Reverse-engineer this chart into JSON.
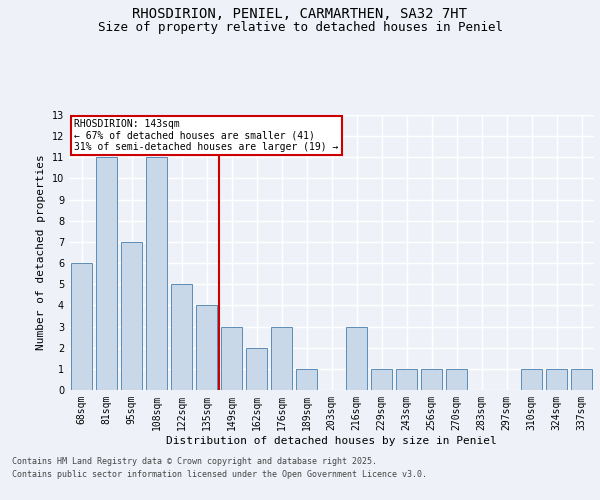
{
  "title_line1": "RHOSDIRION, PENIEL, CARMARTHEN, SA32 7HT",
  "title_line2": "Size of property relative to detached houses in Peniel",
  "xlabel": "Distribution of detached houses by size in Peniel",
  "ylabel": "Number of detached properties",
  "categories": [
    "68sqm",
    "81sqm",
    "95sqm",
    "108sqm",
    "122sqm",
    "135sqm",
    "149sqm",
    "162sqm",
    "176sqm",
    "189sqm",
    "203sqm",
    "216sqm",
    "229sqm",
    "243sqm",
    "256sqm",
    "270sqm",
    "283sqm",
    "297sqm",
    "310sqm",
    "324sqm",
    "337sqm"
  ],
  "values": [
    6,
    11,
    7,
    11,
    5,
    4,
    3,
    2,
    3,
    1,
    0,
    3,
    1,
    1,
    1,
    1,
    0,
    0,
    1,
    1,
    1
  ],
  "bar_color": "#c8d8e8",
  "bar_edgecolor": "#5b8db8",
  "ylim": [
    0,
    13
  ],
  "yticks": [
    0,
    1,
    2,
    3,
    4,
    5,
    6,
    7,
    8,
    9,
    10,
    11,
    12,
    13
  ],
  "vline_x": 5.5,
  "vline_color": "#cc0000",
  "annotation_text": "RHOSDIRION: 143sqm\n← 67% of detached houses are smaller (41)\n31% of semi-detached houses are larger (19) →",
  "footer_line1": "Contains HM Land Registry data © Crown copyright and database right 2025.",
  "footer_line2": "Contains public sector information licensed under the Open Government Licence v3.0.",
  "bg_color": "#eef2f8",
  "plot_bg_color": "#eef2f8",
  "grid_color": "#ffffff",
  "title_fontsize": 10,
  "subtitle_fontsize": 9,
  "tick_fontsize": 7,
  "label_fontsize": 8,
  "footer_fontsize": 6,
  "annot_fontsize": 7
}
